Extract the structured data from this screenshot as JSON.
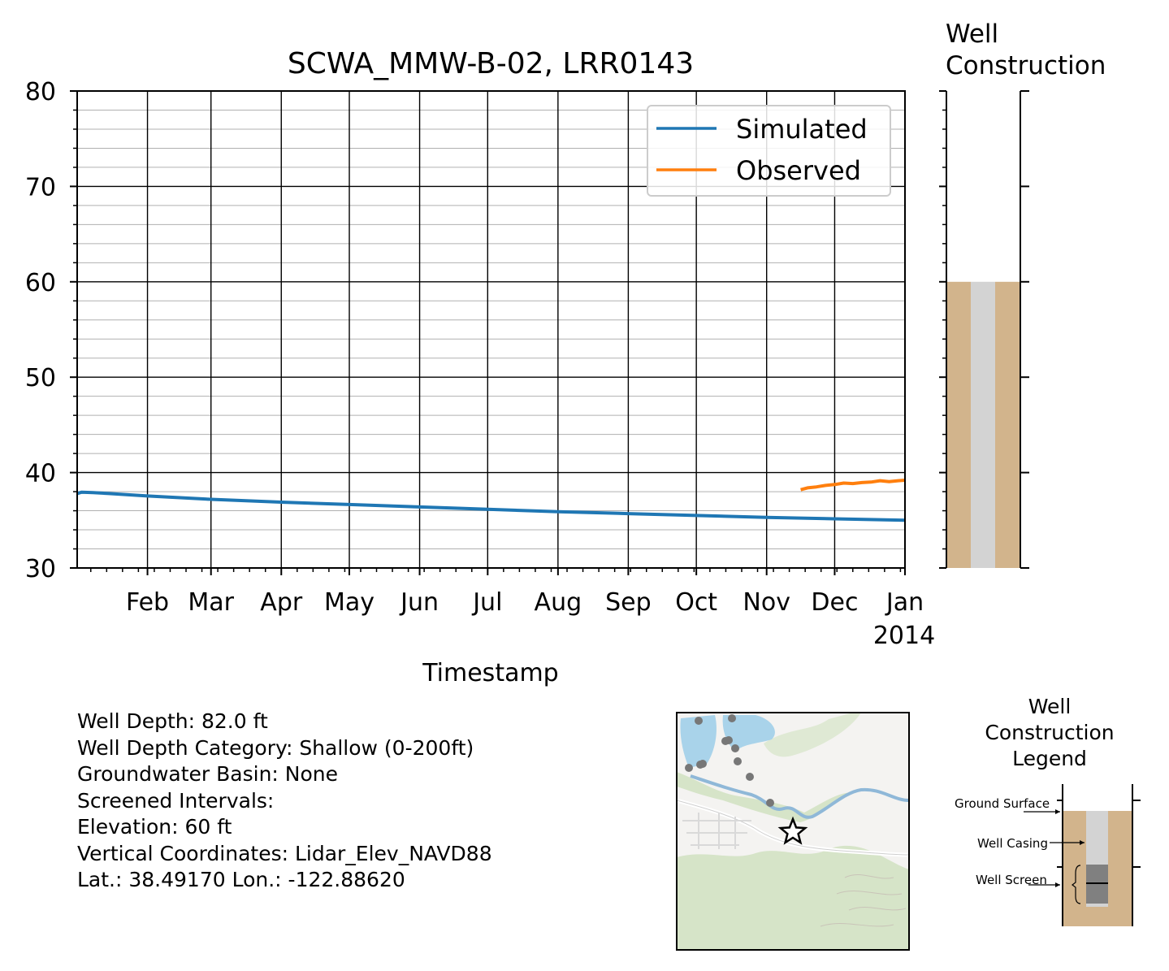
{
  "chart_data": {
    "type": "line",
    "title": "SCWA_MMW-B-02, LRR0143",
    "xlabel": "Timestamp",
    "ylabel": "",
    "ylim": [
      30,
      80
    ],
    "yticks": [
      30,
      40,
      50,
      60,
      70,
      80
    ],
    "xlim": [
      "2013-01-01",
      "2014-01-01"
    ],
    "xtick_labels": [
      "Feb",
      "Mar",
      "Apr",
      "May",
      "Jun",
      "Jul",
      "Aug",
      "Sep",
      "Oct",
      "Nov",
      "Dec",
      "Jan"
    ],
    "xtick_dates": [
      "2013-02-01",
      "2013-03-01",
      "2013-04-01",
      "2013-05-01",
      "2013-06-01",
      "2013-07-01",
      "2013-08-01",
      "2013-09-01",
      "2013-10-01",
      "2013-11-01",
      "2013-12-01",
      "2014-01-01"
    ],
    "year_label": "2014",
    "grid": true,
    "legend_position": "upper-right",
    "series": [
      {
        "name": "Simulated",
        "color": "#1f77b4",
        "points": [
          [
            "2013-01-01",
            37.8
          ],
          [
            "2013-01-03",
            37.95
          ],
          [
            "2013-01-08",
            37.9
          ],
          [
            "2013-01-15",
            37.8
          ],
          [
            "2013-02-01",
            37.55
          ],
          [
            "2013-03-01",
            37.2
          ],
          [
            "2013-04-01",
            36.9
          ],
          [
            "2013-05-01",
            36.65
          ],
          [
            "2013-06-01",
            36.4
          ],
          [
            "2013-07-01",
            36.15
          ],
          [
            "2013-08-01",
            35.9
          ],
          [
            "2013-09-01",
            35.7
          ],
          [
            "2013-10-01",
            35.5
          ],
          [
            "2013-11-01",
            35.3
          ],
          [
            "2013-12-01",
            35.15
          ],
          [
            "2014-01-01",
            35.0
          ]
        ]
      },
      {
        "name": "Observed",
        "color": "#ff7f0e",
        "points": [
          [
            "2013-11-16",
            38.2
          ],
          [
            "2013-11-19",
            38.4
          ],
          [
            "2013-11-23",
            38.5
          ],
          [
            "2013-11-27",
            38.65
          ],
          [
            "2013-12-01",
            38.75
          ],
          [
            "2013-12-05",
            38.9
          ],
          [
            "2013-12-09",
            38.85
          ],
          [
            "2013-12-13",
            38.95
          ],
          [
            "2013-12-17",
            39.0
          ],
          [
            "2013-12-21",
            39.15
          ],
          [
            "2013-12-25",
            39.05
          ],
          [
            "2013-12-29",
            39.15
          ],
          [
            "2014-01-01",
            39.2
          ]
        ]
      }
    ]
  },
  "well_construction": {
    "title_line1": "Well",
    "title_line2": "Construction",
    "ground_surface_elev": 60,
    "ylim": [
      30,
      80
    ],
    "soil_color": "#d2b48c",
    "casing_color": "#d3d3d3"
  },
  "info": {
    "well_depth": "Well Depth: 82.0 ft",
    "depth_category": "Well Depth Category: Shallow (0-200ft)",
    "basin": "Groundwater Basin: None",
    "screened": "Screened Intervals:",
    "elevation": "Elevation: 60 ft",
    "vertical": "Vertical Coordinates: Lidar_Elev_NAVD88",
    "latlon": "Lat.: 38.49170 Lon.: -122.88620"
  },
  "legend_inset": {
    "title1": "Well",
    "title2": "Construction",
    "title3": "Legend",
    "ground_surface": "Ground Surface",
    "well_casing": "Well Casing",
    "well_screen": "Well Screen"
  }
}
